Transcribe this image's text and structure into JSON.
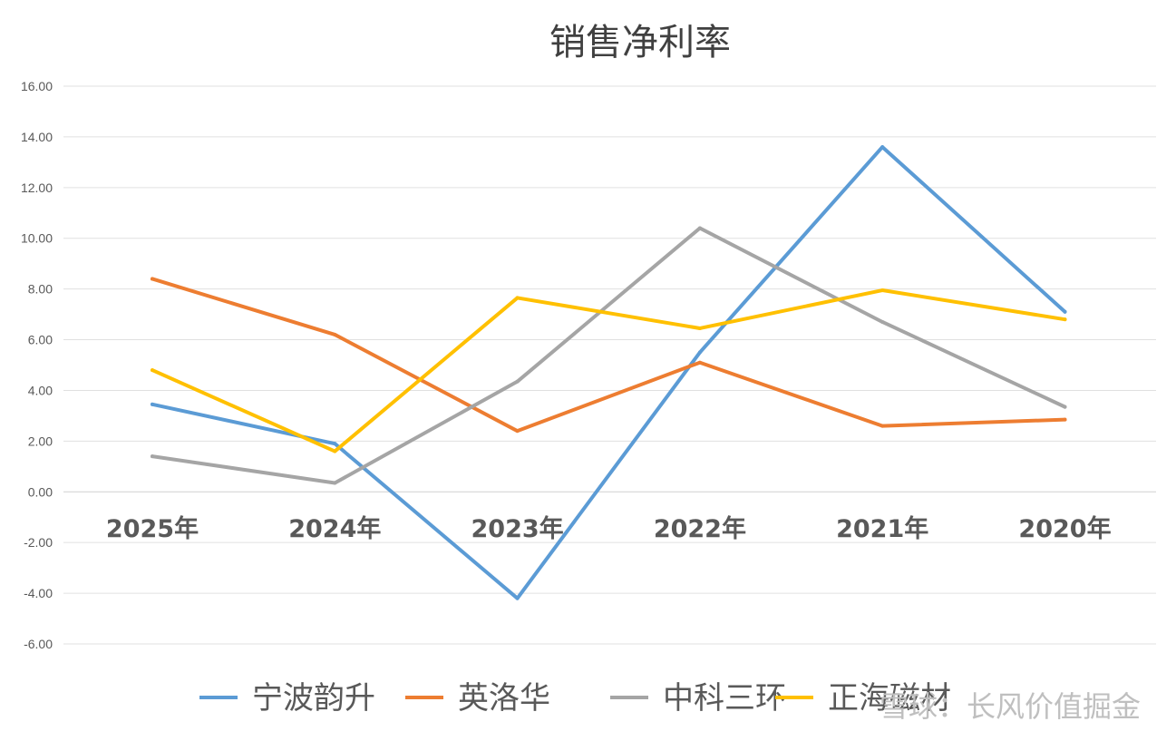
{
  "chart_data": {
    "type": "line",
    "title": "销售净利率",
    "categories": [
      "2025年",
      "2024年",
      "2023年",
      "2022年",
      "2021年",
      "2020年"
    ],
    "ylim": [
      -6,
      16
    ],
    "ytick_step": 2,
    "ytick_labels": [
      "16.00",
      "14.00",
      "12.00",
      "10.00",
      "8.00",
      "6.00",
      "4.00",
      "2.00",
      "0.00",
      "-2.00",
      "-4.00",
      "-6.00"
    ],
    "grid": true,
    "legend_position": "bottom",
    "series": [
      {
        "name": "宁波韵升",
        "color": "#5b9bd5",
        "values": [
          3.45,
          1.9,
          -4.2,
          5.5,
          13.6,
          7.1
        ]
      },
      {
        "name": "英洛华",
        "color": "#ed7d31",
        "values": [
          8.4,
          6.2,
          2.4,
          5.1,
          2.6,
          2.85
        ]
      },
      {
        "name": "中科三环",
        "color": "#a5a5a5",
        "values": [
          1.4,
          0.35,
          4.35,
          10.4,
          6.7,
          3.35
        ]
      },
      {
        "name": "正海磁材",
        "color": "#ffc000",
        "values": [
          4.8,
          1.6,
          7.65,
          6.45,
          7.95,
          6.8
        ]
      }
    ]
  },
  "watermark": "雪球：长风价值掘金"
}
